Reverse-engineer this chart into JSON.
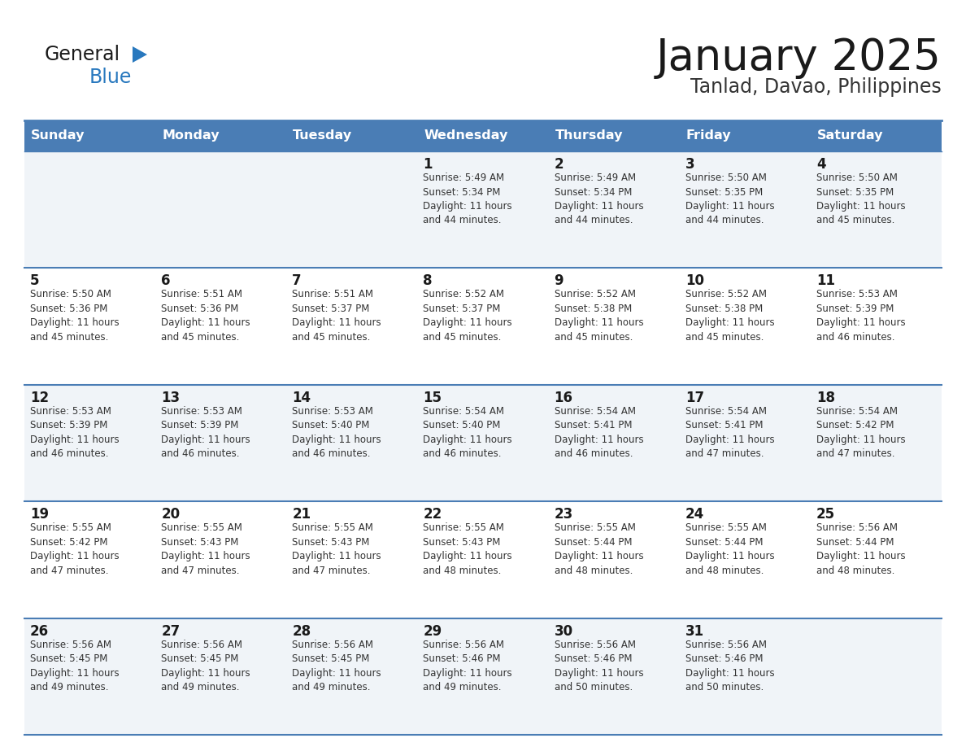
{
  "title": "January 2025",
  "subtitle": "Tanlad, Davao, Philippines",
  "header_bg_color": "#4A7DB5",
  "header_text_color": "#FFFFFF",
  "cell_bg_light": "#F0F4F8",
  "cell_bg_white": "#FFFFFF",
  "cell_border_color": "#4A7DB5",
  "cell_line_color": "#BBBBBB",
  "day_headers": [
    "Sunday",
    "Monday",
    "Tuesday",
    "Wednesday",
    "Thursday",
    "Friday",
    "Saturday"
  ],
  "title_color": "#1A1A1A",
  "subtitle_color": "#333333",
  "day_num_color": "#1A1A1A",
  "cell_text_color": "#333333",
  "logo_general_color": "#1A1A1A",
  "logo_blue_color": "#2878BE",
  "weeks": [
    [
      {
        "day": "",
        "info": ""
      },
      {
        "day": "",
        "info": ""
      },
      {
        "day": "",
        "info": ""
      },
      {
        "day": "1",
        "info": "Sunrise: 5:49 AM\nSunset: 5:34 PM\nDaylight: 11 hours\nand 44 minutes."
      },
      {
        "day": "2",
        "info": "Sunrise: 5:49 AM\nSunset: 5:34 PM\nDaylight: 11 hours\nand 44 minutes."
      },
      {
        "day": "3",
        "info": "Sunrise: 5:50 AM\nSunset: 5:35 PM\nDaylight: 11 hours\nand 44 minutes."
      },
      {
        "day": "4",
        "info": "Sunrise: 5:50 AM\nSunset: 5:35 PM\nDaylight: 11 hours\nand 45 minutes."
      }
    ],
    [
      {
        "day": "5",
        "info": "Sunrise: 5:50 AM\nSunset: 5:36 PM\nDaylight: 11 hours\nand 45 minutes."
      },
      {
        "day": "6",
        "info": "Sunrise: 5:51 AM\nSunset: 5:36 PM\nDaylight: 11 hours\nand 45 minutes."
      },
      {
        "day": "7",
        "info": "Sunrise: 5:51 AM\nSunset: 5:37 PM\nDaylight: 11 hours\nand 45 minutes."
      },
      {
        "day": "8",
        "info": "Sunrise: 5:52 AM\nSunset: 5:37 PM\nDaylight: 11 hours\nand 45 minutes."
      },
      {
        "day": "9",
        "info": "Sunrise: 5:52 AM\nSunset: 5:38 PM\nDaylight: 11 hours\nand 45 minutes."
      },
      {
        "day": "10",
        "info": "Sunrise: 5:52 AM\nSunset: 5:38 PM\nDaylight: 11 hours\nand 45 minutes."
      },
      {
        "day": "11",
        "info": "Sunrise: 5:53 AM\nSunset: 5:39 PM\nDaylight: 11 hours\nand 46 minutes."
      }
    ],
    [
      {
        "day": "12",
        "info": "Sunrise: 5:53 AM\nSunset: 5:39 PM\nDaylight: 11 hours\nand 46 minutes."
      },
      {
        "day": "13",
        "info": "Sunrise: 5:53 AM\nSunset: 5:39 PM\nDaylight: 11 hours\nand 46 minutes."
      },
      {
        "day": "14",
        "info": "Sunrise: 5:53 AM\nSunset: 5:40 PM\nDaylight: 11 hours\nand 46 minutes."
      },
      {
        "day": "15",
        "info": "Sunrise: 5:54 AM\nSunset: 5:40 PM\nDaylight: 11 hours\nand 46 minutes."
      },
      {
        "day": "16",
        "info": "Sunrise: 5:54 AM\nSunset: 5:41 PM\nDaylight: 11 hours\nand 46 minutes."
      },
      {
        "day": "17",
        "info": "Sunrise: 5:54 AM\nSunset: 5:41 PM\nDaylight: 11 hours\nand 47 minutes."
      },
      {
        "day": "18",
        "info": "Sunrise: 5:54 AM\nSunset: 5:42 PM\nDaylight: 11 hours\nand 47 minutes."
      }
    ],
    [
      {
        "day": "19",
        "info": "Sunrise: 5:55 AM\nSunset: 5:42 PM\nDaylight: 11 hours\nand 47 minutes."
      },
      {
        "day": "20",
        "info": "Sunrise: 5:55 AM\nSunset: 5:43 PM\nDaylight: 11 hours\nand 47 minutes."
      },
      {
        "day": "21",
        "info": "Sunrise: 5:55 AM\nSunset: 5:43 PM\nDaylight: 11 hours\nand 47 minutes."
      },
      {
        "day": "22",
        "info": "Sunrise: 5:55 AM\nSunset: 5:43 PM\nDaylight: 11 hours\nand 48 minutes."
      },
      {
        "day": "23",
        "info": "Sunrise: 5:55 AM\nSunset: 5:44 PM\nDaylight: 11 hours\nand 48 minutes."
      },
      {
        "day": "24",
        "info": "Sunrise: 5:55 AM\nSunset: 5:44 PM\nDaylight: 11 hours\nand 48 minutes."
      },
      {
        "day": "25",
        "info": "Sunrise: 5:56 AM\nSunset: 5:44 PM\nDaylight: 11 hours\nand 48 minutes."
      }
    ],
    [
      {
        "day": "26",
        "info": "Sunrise: 5:56 AM\nSunset: 5:45 PM\nDaylight: 11 hours\nand 49 minutes."
      },
      {
        "day": "27",
        "info": "Sunrise: 5:56 AM\nSunset: 5:45 PM\nDaylight: 11 hours\nand 49 minutes."
      },
      {
        "day": "28",
        "info": "Sunrise: 5:56 AM\nSunset: 5:45 PM\nDaylight: 11 hours\nand 49 minutes."
      },
      {
        "day": "29",
        "info": "Sunrise: 5:56 AM\nSunset: 5:46 PM\nDaylight: 11 hours\nand 49 minutes."
      },
      {
        "day": "30",
        "info": "Sunrise: 5:56 AM\nSunset: 5:46 PM\nDaylight: 11 hours\nand 50 minutes."
      },
      {
        "day": "31",
        "info": "Sunrise: 5:56 AM\nSunset: 5:46 PM\nDaylight: 11 hours\nand 50 minutes."
      },
      {
        "day": "",
        "info": ""
      }
    ]
  ]
}
